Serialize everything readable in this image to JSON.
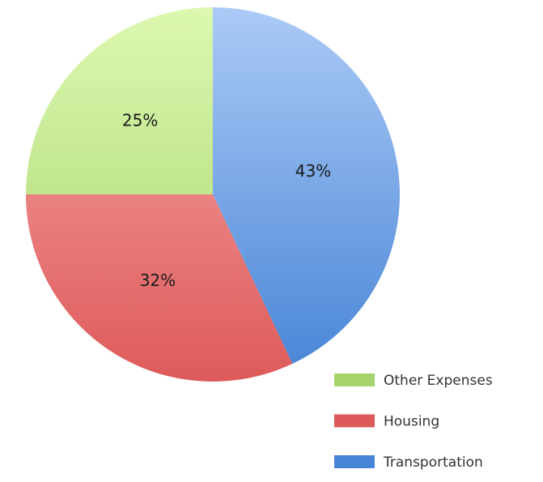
{
  "chart_data": {
    "type": "pie",
    "categories": [
      "Other Expenses",
      "Housing",
      "Transportation"
    ],
    "values": [
      25,
      32,
      43
    ],
    "value_labels": [
      "25%",
      "32%",
      "43%"
    ],
    "colors": [
      [
        "#dcf8b0",
        "#a6d46c"
      ],
      [
        "#f8a9a9",
        "#de5a5a"
      ],
      [
        "#abcaf6",
        "#4684d6"
      ]
    ]
  }
}
